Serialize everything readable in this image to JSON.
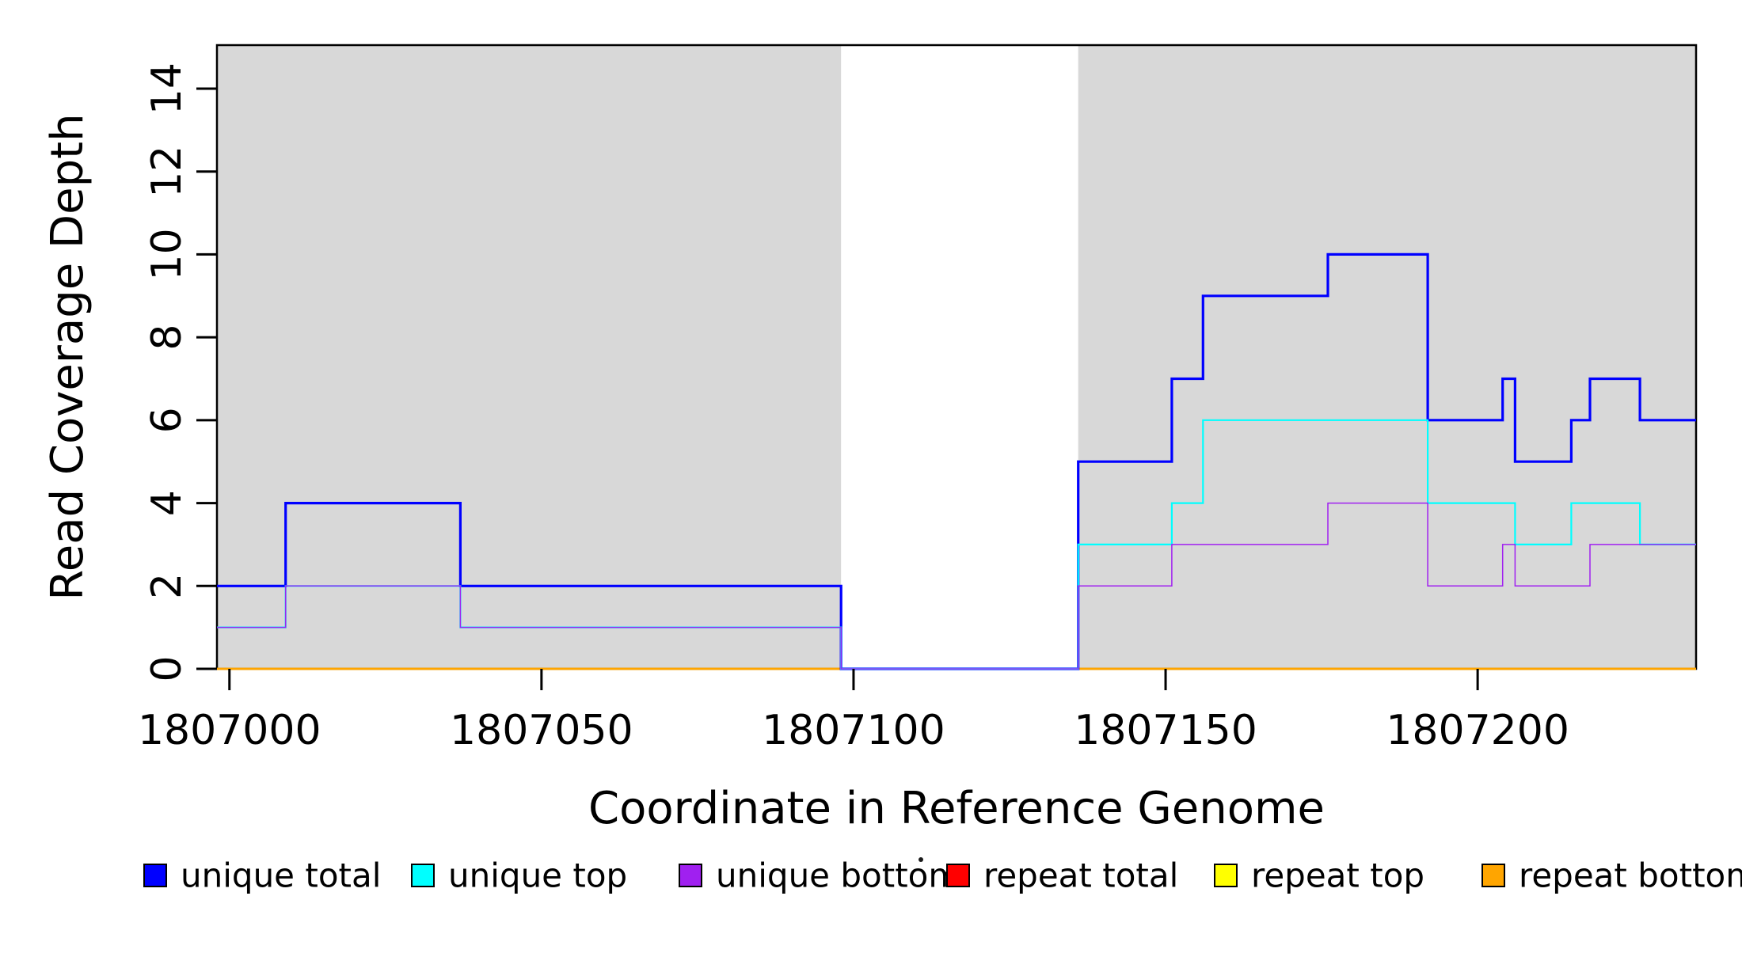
{
  "chart_data": {
    "type": "line",
    "subtype": "step-coverage",
    "title": "",
    "xlabel": "Coordinate in Reference Genome",
    "ylabel": "Read Coverage Depth",
    "xlim": [
      1806998,
      1807235
    ],
    "ylim": [
      0,
      15.05
    ],
    "x_ticks": [
      {
        "value": 1807000,
        "label": "1807000"
      },
      {
        "value": 1807050,
        "label": "1807050"
      },
      {
        "value": 1807100,
        "label": "1807100"
      },
      {
        "value": 1807150,
        "label": "1807150"
      },
      {
        "value": 1807200,
        "label": "1807200"
      }
    ],
    "y_ticks": [
      {
        "value": 0,
        "label": "0"
      },
      {
        "value": 2,
        "label": "2"
      },
      {
        "value": 4,
        "label": "4"
      },
      {
        "value": 6,
        "label": "6"
      },
      {
        "value": 8,
        "label": "8"
      },
      {
        "value": 10,
        "label": "10"
      },
      {
        "value": 12,
        "label": "12"
      },
      {
        "value": 14,
        "label": "14"
      }
    ],
    "grid": false,
    "plot_background": "#FFFFFF",
    "shaded_region_color": "#D8D8D8",
    "background_regions": [
      {
        "name": "mappable-region-left",
        "x0": 1806998,
        "x1": 1807098
      },
      {
        "name": "mappable-region-right",
        "x0": 1807136,
        "x1": 1807235
      }
    ],
    "series": [
      {
        "name": "repeat total",
        "color": "#FF0000",
        "line_width": 2.4,
        "segments": [
          {
            "points": [
              [
                1806998,
                0
              ]
            ],
            "end": 1807098
          },
          {
            "points": [
              [
                1807136,
                0
              ]
            ],
            "end": 1807235
          }
        ]
      },
      {
        "name": "repeat top",
        "color": "#FFFF00",
        "line_width": 2.4,
        "segments": [
          {
            "points": [
              [
                1806998,
                0
              ]
            ],
            "end": 1807098
          },
          {
            "points": [
              [
                1807136,
                0
              ]
            ],
            "end": 1807235
          }
        ]
      },
      {
        "name": "repeat bottom",
        "color": "#FFA500",
        "line_width": 2.4,
        "segments": [
          {
            "points": [
              [
                1806998,
                0
              ]
            ],
            "end": 1807098
          },
          {
            "points": [
              [
                1807136,
                0
              ]
            ],
            "end": 1807235
          }
        ]
      },
      {
        "name": "unique total",
        "color": "#0000FF",
        "line_width": 3.2,
        "segments": [
          {
            "points": [
              [
                1806998,
                2
              ],
              [
                1807009,
                4
              ],
              [
                1807037,
                2
              ],
              [
                1807098,
                0
              ],
              [
                1807136,
                5
              ],
              [
                1807151,
                7
              ],
              [
                1807156,
                9
              ],
              [
                1807176,
                10
              ],
              [
                1807192,
                6
              ],
              [
                1807204,
                7
              ],
              [
                1807206,
                5
              ],
              [
                1807215,
                6
              ],
              [
                1807218,
                7
              ],
              [
                1807226,
                6
              ]
            ],
            "end": 1807235
          }
        ]
      },
      {
        "name": "unique top",
        "color": "#00FFFF",
        "line_width": 2.2,
        "segments": [
          {
            "points": [
              [
                1806998,
                1
              ],
              [
                1807009,
                2
              ],
              [
                1807037,
                1
              ],
              [
                1807098,
                0
              ],
              [
                1807136,
                3
              ],
              [
                1807151,
                4
              ],
              [
                1807156,
                6
              ],
              [
                1807192,
                4
              ],
              [
                1807206,
                3
              ],
              [
                1807215,
                4
              ],
              [
                1807226,
                3
              ]
            ],
            "end": 1807235
          }
        ]
      },
      {
        "name": "unique bottom",
        "color": "#A020F0",
        "line_width": 1.5,
        "segments": [
          {
            "points": [
              [
                1806998,
                1
              ],
              [
                1807009,
                2
              ],
              [
                1807037,
                1
              ],
              [
                1807098,
                0
              ],
              [
                1807136,
                2
              ],
              [
                1807151,
                3
              ],
              [
                1807176,
                4
              ],
              [
                1807192,
                2
              ],
              [
                1807204,
                3
              ],
              [
                1807206,
                2
              ],
              [
                1807218,
                3
              ]
            ],
            "end": 1807235
          }
        ]
      }
    ],
    "legend": {
      "position": "bottom",
      "entries": [
        {
          "label": "unique total",
          "color": "#0000FF"
        },
        {
          "label": "unique top",
          "color": "#00FFFF"
        },
        {
          "label": "unique bottom",
          "color": "#A020F0"
        },
        {
          "label": "repeat total",
          "color": "#FF0000"
        },
        {
          "label": "repeat top",
          "color": "#FFFF00"
        },
        {
          "label": "repeat bottom",
          "color": "#FFA500"
        }
      ]
    }
  }
}
